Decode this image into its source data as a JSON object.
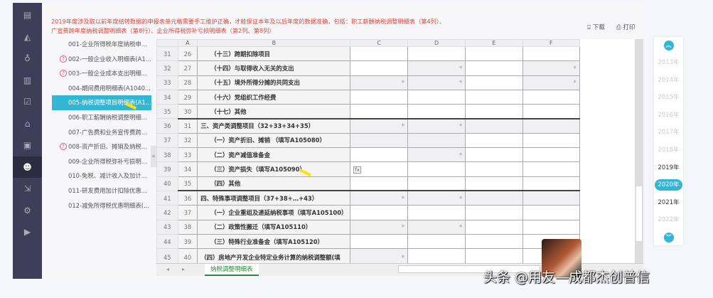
{
  "sidebar": {
    "icons": [
      "report-icon",
      "chart-icon",
      "money-bag-icon",
      "building-icon",
      "checklist-icon",
      "shop-icon",
      "monitor-icon",
      "hand-coin-icon",
      "export-icon",
      "settings-icon",
      "video-icon"
    ],
    "active_index": 7
  },
  "notice": "2019年度涉及取以前年度结转数据的申报表单元格需要手工维护正确，才能保证本年及以后年度的数据准确，包括：职工薪酬纳税调整明细表（第4列）、广宣费跨年度纳税调整明细表（第8行）、企业所得税弥补亏损明细表（第2列、第8列）",
  "toolbar": {
    "download": "下载",
    "print": "打印"
  },
  "tree": [
    {
      "label": "001-企业所得税年度纳税申...",
      "warn": false
    },
    {
      "label": "002-一般企业收入明细表(A1...",
      "warn": true
    },
    {
      "label": "003-一般企业成本支出明细...",
      "warn": true
    },
    {
      "label": "004-期间费用明细表(A1040...",
      "warn": false
    },
    {
      "label": "005-纳税调整项目明细表(A1...",
      "warn": false,
      "selected": true
    },
    {
      "label": "006-职工薪酬纳税调整明细...",
      "warn": false
    },
    {
      "label": "007-广告费和业务宣传费跨...",
      "warn": false
    },
    {
      "label": "008-资产折旧、摊销及纳税...",
      "warn": true
    },
    {
      "label": "009-企业所得税弥补亏损明...",
      "warn": false
    },
    {
      "label": "010-免税、减计收入及加计...",
      "warn": false
    },
    {
      "label": "011-研发费用加计扣除优惠...",
      "warn": false
    },
    {
      "label": "012-减免所得税优惠明细表(...",
      "warn": false
    }
  ],
  "grid": {
    "columns": [
      "A",
      "B",
      "C",
      "D",
      "E",
      "F"
    ],
    "rows": [
      {
        "rn": "31",
        "a": "26",
        "b": "（十三）跨期扣除项目",
        "g": []
      },
      {
        "rn": "32",
        "a": "27",
        "b": "（十四）与取得收入无关的支出",
        "g": [
          "D*",
          "F*"
        ]
      },
      {
        "rn": "33",
        "a": "28",
        "b": "（十五）境外所得分摊的共同支出",
        "g": [
          "C*",
          "D*",
          "F*"
        ]
      },
      {
        "rn": "34",
        "a": "29",
        "b": "（十六）党组织工作经费",
        "g": []
      },
      {
        "rn": "35",
        "a": "30",
        "b": "（十七）其他",
        "g": []
      },
      {
        "rn": "36",
        "a": "31",
        "b": "三、资产类调整项目（32+33+34+35）",
        "g": [
          "C*",
          "D*",
          "E",
          "F"
        ],
        "top": true
      },
      {
        "rn": "37",
        "a": "32",
        "b": "（一）资产折旧、摊销 （填写A105080）",
        "g": [
          "C",
          "D"
        ]
      },
      {
        "rn": "38",
        "a": "33",
        "b": "（二）资产减值准备金",
        "g": [
          "D*"
        ]
      },
      {
        "rn": "39",
        "a": "34",
        "b": "（三）资产损失（填写A105090）",
        "g": [],
        "fx": true
      },
      {
        "rn": "40",
        "a": "35",
        "b": "（四）其他",
        "g": []
      },
      {
        "rn": "41",
        "a": "36",
        "b": "四、特殊事项调整项目（37+38+…+43）",
        "g": [
          "C*",
          "D*",
          "E",
          "F"
        ],
        "top": true
      },
      {
        "rn": "42",
        "a": "37",
        "b": "（一）企业重组及递延纳税事项（填写A105100）",
        "g": []
      },
      {
        "rn": "43",
        "a": "38",
        "b": "（二）政策性搬迁（填写A105110）",
        "g": [
          "C*",
          "D*"
        ]
      },
      {
        "rn": "44",
        "a": "39",
        "b": "（三）特殊行业准备金（填写A105120）",
        "g": []
      },
      {
        "rn": "45",
        "a": "40",
        "b": "（四）房地产开发企业特定业务计算的纳税调整额(填",
        "g": [
          "C*"
        ]
      }
    ],
    "sheet_tab": "纳税调整明细表"
  },
  "years": {
    "items": [
      "2013年",
      "2014年",
      "2015年",
      "2016年",
      "2017年",
      "2018年",
      "2019年",
      "2020年",
      "2021年",
      "2022年"
    ],
    "selected": "2020年",
    "enabled": [
      "2019年",
      "2020年",
      "2021年"
    ]
  },
  "watermark": "头条 @用友—成都杰创普信",
  "accent_color": "#33b5d4"
}
